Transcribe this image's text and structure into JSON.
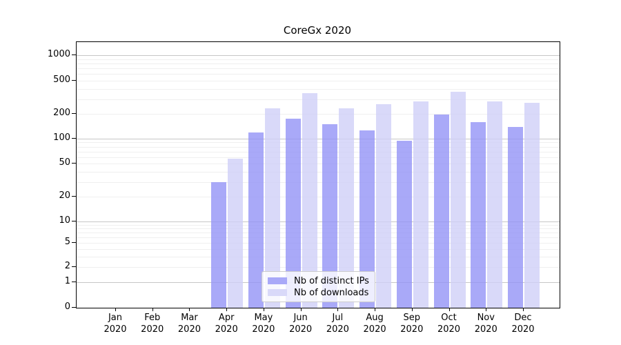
{
  "chart_data": {
    "type": "bar",
    "title": "CoreGx 2020",
    "categories": [
      "Jan",
      "Feb",
      "Mar",
      "Apr",
      "May",
      "Jun",
      "Jul",
      "Aug",
      "Sep",
      "Oct",
      "Nov",
      "Dec"
    ],
    "category_year": "2020",
    "series": [
      {
        "name": "Nb of distinct IPs",
        "color": "#a9a9f8",
        "fill": "rgba(145,145,246,0.78)",
        "values": [
          0,
          0,
          0,
          30,
          120,
          175,
          150,
          125,
          95,
          195,
          160,
          140
        ]
      },
      {
        "name": "Nb of downloads",
        "color": "#d9d9f9",
        "fill": "rgba(206,206,247,0.78)",
        "values": [
          0,
          0,
          0,
          57,
          235,
          355,
          235,
          260,
          280,
          365,
          280,
          270
        ]
      }
    ],
    "yaxis": {
      "scale": "symlog",
      "ticks": [
        0,
        1,
        2,
        5,
        10,
        20,
        50,
        100,
        200,
        500,
        1000
      ],
      "ylim": [
        0,
        1100
      ],
      "minor_gridlines": true
    },
    "grid": "horizontal",
    "legend_position": "lower center",
    "colors": {
      "major_grid": "#c6c6c6",
      "minor_grid": "#efefef",
      "axis": "#000000"
    }
  }
}
